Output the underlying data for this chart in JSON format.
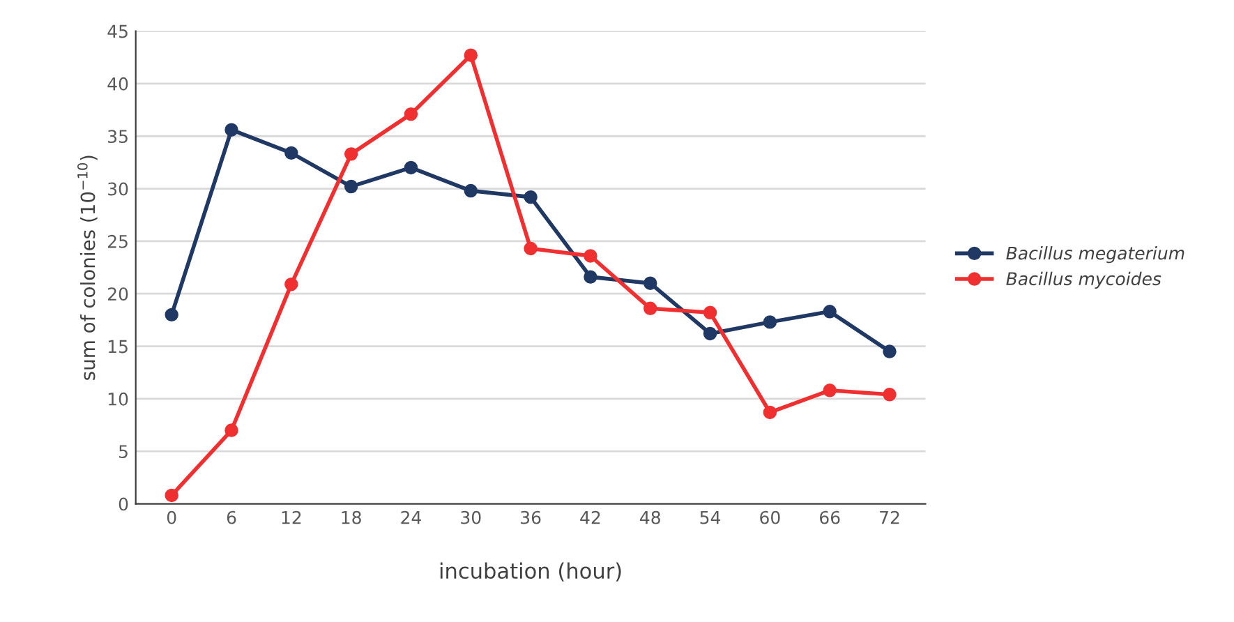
{
  "chart_data": {
    "type": "line",
    "xlabel": "incubation (hour)",
    "ylabel": "sum of colonies (10$^{−10}$)",
    "categories": [
      "0",
      "6",
      "12",
      "18",
      "24",
      "30",
      "36",
      "42",
      "48",
      "54",
      "60",
      "66",
      "72"
    ],
    "series": [
      {
        "name": "Bacillus megaterium",
        "color": "#1f3864",
        "values": [
          18,
          35.6,
          33.4,
          30.2,
          32,
          29.8,
          29.2,
          21.6,
          21,
          16.2,
          17.3,
          18.3,
          14.5
        ]
      },
      {
        "name": "Bacillus mycoides",
        "color": "#f03030",
        "values": [
          0.8,
          7,
          20.9,
          33.3,
          37.1,
          42.7,
          24.3,
          23.6,
          18.6,
          18.2,
          8.7,
          10.8,
          10.4
        ]
      }
    ],
    "ylim": [
      0,
      45
    ],
    "yticks": [
      0,
      5,
      10,
      15,
      20,
      25,
      30,
      35,
      40,
      45
    ],
    "grid": "y",
    "legend": "right",
    "marker": "circle",
    "line_style": "solid"
  }
}
